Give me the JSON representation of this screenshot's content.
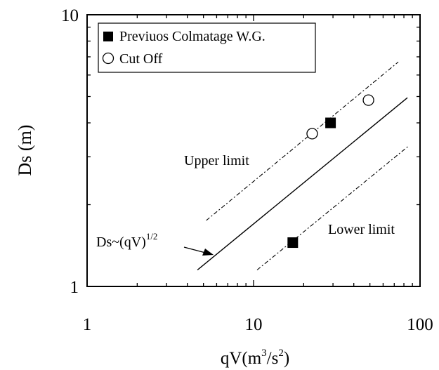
{
  "chart_data": {
    "type": "scatter",
    "xscale": "log",
    "yscale": "log",
    "xlim": [
      1,
      100
    ],
    "ylim": [
      1,
      10
    ],
    "xlabel": {
      "base": "qV(m",
      "sup1": "3",
      "mid": "/s",
      "sup2": "2",
      "end": ")"
    },
    "ylabel": "Ds (m)",
    "xticks": [
      {
        "value": 1,
        "label": "1"
      },
      {
        "value": 10,
        "label": "10"
      },
      {
        "value": 100,
        "label": "100"
      }
    ],
    "yticks": [
      {
        "value": 1,
        "label": "1"
      },
      {
        "value": 10,
        "label": "10"
      }
    ],
    "grid": false,
    "legend_position": "top-left",
    "series": [
      {
        "name": "Previuos Colmatage W.G.",
        "marker": "filled-square",
        "points": [
          {
            "x": 17.2,
            "y": 1.45
          },
          {
            "x": 29,
            "y": 4.0
          }
        ]
      },
      {
        "name": "Cut Off",
        "marker": "open-circle",
        "points": [
          {
            "x": 22.5,
            "y": 3.65
          },
          {
            "x": 49,
            "y": 4.85
          }
        ]
      }
    ],
    "lines": [
      {
        "name": "Ds~(qV)^1/2",
        "style": "solid",
        "from": {
          "x": 4.6,
          "y": 1.15
        },
        "to": {
          "x": 84,
          "y": 4.95
        }
      },
      {
        "name": "Upper limit",
        "style": "dashed",
        "from": {
          "x": 5.2,
          "y": 1.75
        },
        "to": {
          "x": 74,
          "y": 6.7
        }
      },
      {
        "name": "Lower limit",
        "style": "dashed",
        "from": {
          "x": 10.5,
          "y": 1.15
        },
        "to": {
          "x": 86,
          "y": 3.3
        }
      }
    ],
    "annotations": {
      "upper": "Upper limit",
      "lower": "Lower limit",
      "trend_base": "Ds~(qV)",
      "trend_exp": "1/2"
    }
  }
}
